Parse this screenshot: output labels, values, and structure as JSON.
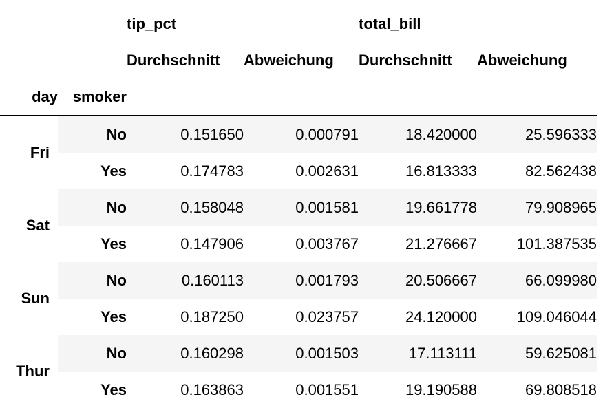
{
  "columns": {
    "groups": [
      "tip_pct",
      "total_bill"
    ],
    "stats": [
      "Durchschnitt",
      "Abweichung",
      "Durchschnitt",
      "Abweichung"
    ]
  },
  "index_names": {
    "day": "day",
    "smoker": "smoker"
  },
  "rows": [
    {
      "day": "Fri",
      "smoker": "No",
      "values": [
        "0.151650",
        "0.000791",
        "18.420000",
        "25.596333"
      ]
    },
    {
      "day": "",
      "smoker": "Yes",
      "values": [
        "0.174783",
        "0.002631",
        "16.813333",
        "82.562438"
      ]
    },
    {
      "day": "Sat",
      "smoker": "No",
      "values": [
        "0.158048",
        "0.001581",
        "19.661778",
        "79.908965"
      ]
    },
    {
      "day": "",
      "smoker": "Yes",
      "values": [
        "0.147906",
        "0.003767",
        "21.276667",
        "101.387535"
      ]
    },
    {
      "day": "Sun",
      "smoker": "No",
      "values": [
        "0.160113",
        "0.001793",
        "20.506667",
        "66.099980"
      ]
    },
    {
      "day": "",
      "smoker": "Yes",
      "values": [
        "0.187250",
        "0.023757",
        "24.120000",
        "109.046044"
      ]
    },
    {
      "day": "Thur",
      "smoker": "No",
      "values": [
        "0.160298",
        "0.001503",
        "17.113111",
        "59.625081"
      ]
    },
    {
      "day": "",
      "smoker": "Yes",
      "values": [
        "0.163863",
        "0.001551",
        "19.190588",
        "69.808518"
      ]
    }
  ]
}
